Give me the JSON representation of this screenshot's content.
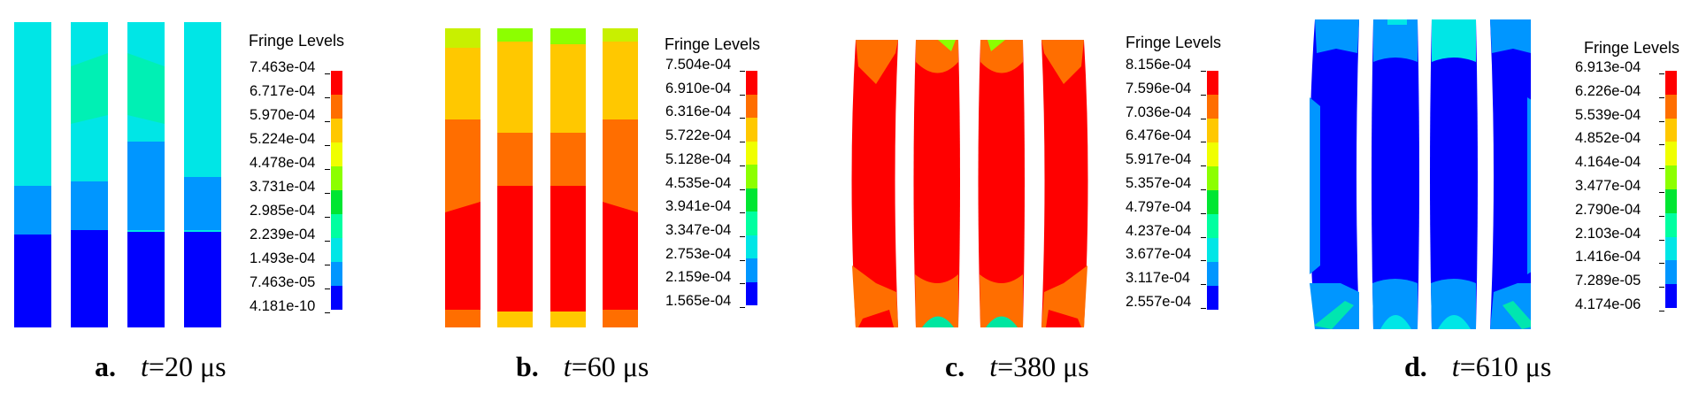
{
  "panels": [
    {
      "legend_title": "Fringe Levels",
      "ticks": [
        "7.463e-04",
        "6.717e-04",
        "5.970e-04",
        "5.224e-04",
        "4.478e-04",
        "3.731e-04",
        "2.985e-04",
        "2.239e-04",
        "1.493e-04",
        "7.463e-05",
        "4.181e-10"
      ],
      "caption": {
        "letter": "a.",
        "var": "t",
        "rest": "=20 μs"
      }
    },
    {
      "legend_title": "Fringe Levels",
      "ticks": [
        "7.504e-04",
        "6.910e-04",
        "6.316e-04",
        "5.722e-04",
        "5.128e-04",
        "4.535e-04",
        "3.941e-04",
        "3.347e-04",
        "2.753e-04",
        "2.159e-04",
        "1.565e-04"
      ],
      "caption": {
        "letter": "b.",
        "var": "t",
        "rest": "=60 μs"
      }
    },
    {
      "legend_title": "Fringe Levels",
      "ticks": [
        "8.156e-04",
        "7.596e-04",
        "7.036e-04",
        "6.476e-04",
        "5.917e-04",
        "5.357e-04",
        "4.797e-04",
        "4.237e-04",
        "3.677e-04",
        "3.117e-04",
        "2.557e-04"
      ],
      "caption": {
        "letter": "c.",
        "var": "t",
        "rest": "=380 μs"
      }
    },
    {
      "legend_title": "Fringe Levels",
      "ticks": [
        "6.913e-04",
        "6.226e-04",
        "5.539e-04",
        "4.852e-04",
        "4.164e-04",
        "3.477e-04",
        "2.790e-04",
        "2.103e-04",
        "1.416e-04",
        "7.289e-05",
        "4.174e-06"
      ],
      "caption": {
        "letter": "d.",
        "var": "t",
        "rest": "=610 μs"
      }
    }
  ],
  "colorscale": [
    "#ff0000",
    "#ff6e00",
    "#ffc800",
    "#f0ff00",
    "#8cff00",
    "#00e632",
    "#00ffa0",
    "#00e6e6",
    "#0096ff",
    "#0000ff"
  ]
}
